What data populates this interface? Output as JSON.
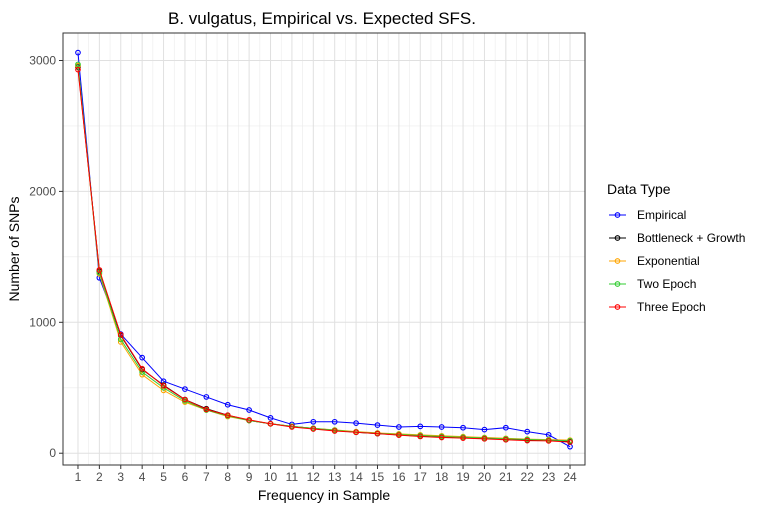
{
  "chart_data": {
    "type": "line",
    "title": "B. vulgatus, Empirical vs. Expected SFS.",
    "xlabel": "Frequency in Sample",
    "ylabel": "Number of SNPs",
    "x": [
      1,
      2,
      3,
      4,
      5,
      6,
      7,
      8,
      9,
      10,
      11,
      12,
      13,
      14,
      15,
      16,
      17,
      18,
      19,
      20,
      21,
      22,
      23,
      24
    ],
    "xlim": [
      0.3,
      24.7
    ],
    "ylim": [
      -90,
      3210
    ],
    "yticks": [
      0,
      1000,
      2000,
      3000
    ],
    "grid": true,
    "legend_title": "Data Type",
    "legend_position": "right",
    "series": [
      {
        "name": "Empirical",
        "color": "#0000ff",
        "values": [
          3060,
          1340,
          910,
          730,
          550,
          490,
          430,
          370,
          330,
          270,
          220,
          240,
          240,
          230,
          215,
          200,
          205,
          200,
          195,
          180,
          195,
          165,
          140,
          50
        ]
      },
      {
        "name": "Bottleneck + Growth",
        "color": "#000000",
        "values": [
          2950,
          1390,
          900,
          640,
          520,
          410,
          340,
          290,
          250,
          225,
          205,
          190,
          175,
          160,
          150,
          140,
          130,
          125,
          120,
          115,
          105,
          100,
          98,
          90
        ]
      },
      {
        "name": "Exponential",
        "color": "#ffa500",
        "values": [
          2960,
          1370,
          850,
          600,
          480,
          390,
          330,
          280,
          250,
          225,
          205,
          190,
          178,
          165,
          155,
          148,
          140,
          133,
          127,
          120,
          114,
          108,
          104,
          100
        ]
      },
      {
        "name": "Two Epoch",
        "color": "#32cd32",
        "values": [
          2970,
          1380,
          870,
          620,
          500,
          400,
          330,
          285,
          250,
          225,
          205,
          190,
          175,
          162,
          152,
          143,
          135,
          128,
          122,
          116,
          110,
          105,
          100,
          95
        ]
      },
      {
        "name": "Three Epoch",
        "color": "#ff0000",
        "values": [
          2930,
          1400,
          905,
          645,
          515,
          410,
          335,
          290,
          255,
          225,
          200,
          185,
          170,
          160,
          150,
          138,
          128,
          120,
          115,
          110,
          103,
          96,
          94,
          85
        ]
      }
    ]
  }
}
